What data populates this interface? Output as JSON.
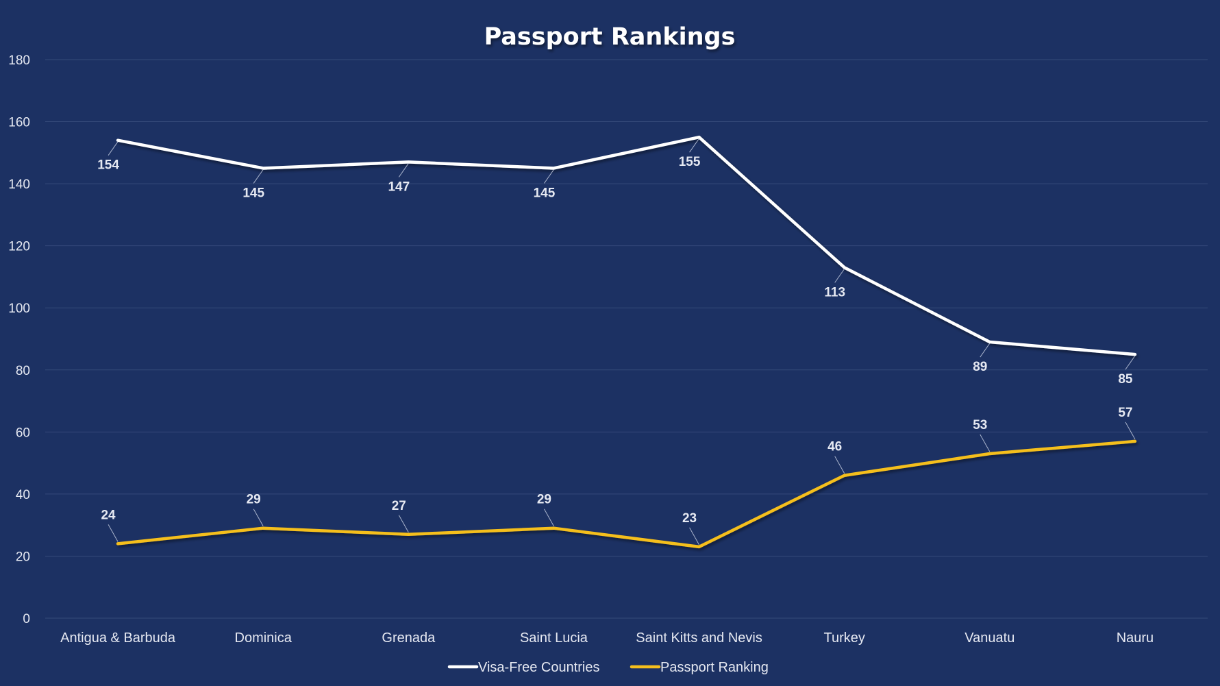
{
  "chart_data": {
    "type": "line",
    "title": "Passport Rankings",
    "categories": [
      "Antigua & Barbuda",
      "Dominica",
      "Grenada",
      "Saint Lucia",
      "Saint Kitts and Nevis",
      "Turkey",
      "Vanuatu",
      "Nauru"
    ],
    "series": [
      {
        "name": "Visa-Free Countries",
        "values": [
          154,
          145,
          147,
          145,
          155,
          113,
          89,
          85
        ],
        "color": "#ffffff",
        "label_position": "below"
      },
      {
        "name": "Passport Ranking",
        "values": [
          24,
          29,
          27,
          29,
          23,
          46,
          53,
          57
        ],
        "color": "#f5bf1d",
        "label_position": "above"
      }
    ],
    "ylim": [
      0,
      180
    ],
    "yticks": [
      0,
      20,
      40,
      60,
      80,
      100,
      120,
      140,
      160,
      180
    ],
    "grid": true,
    "legend": "bottom",
    "background": "#1c3163"
  }
}
